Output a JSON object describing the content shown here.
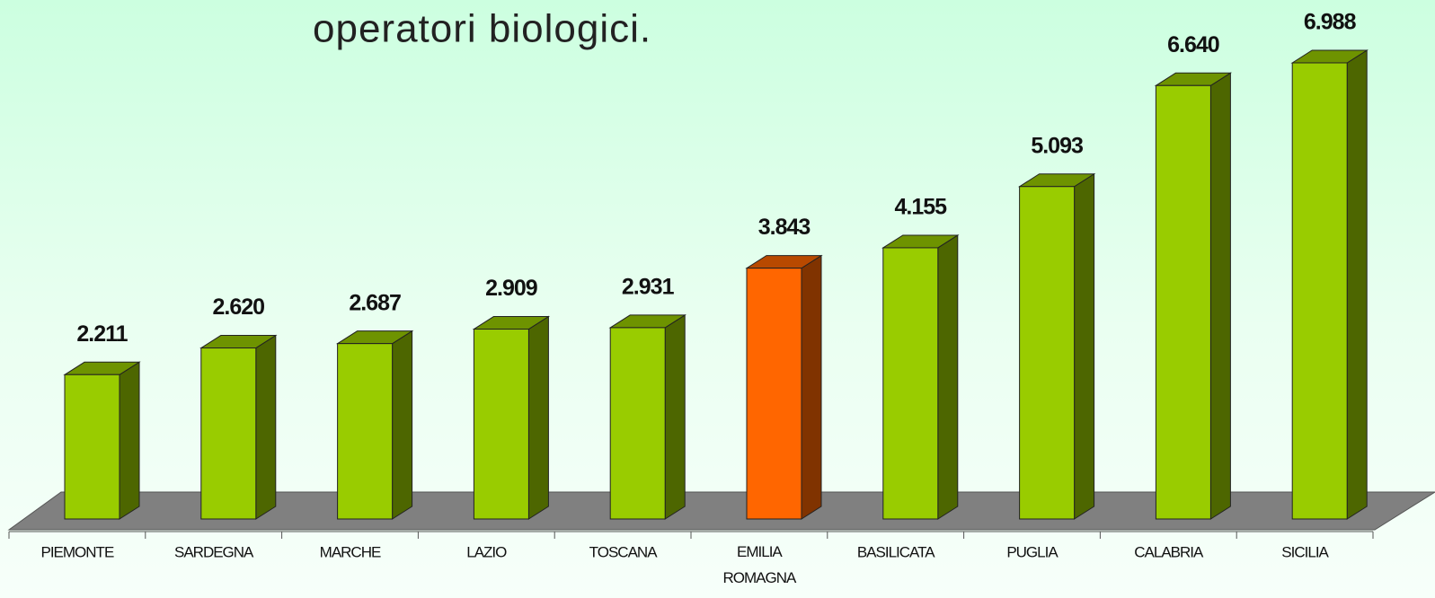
{
  "chart_data": {
    "type": "bar3d",
    "title": "operatori biologici.",
    "categories": [
      "PIEMONTE",
      "SARDEGNA",
      "MARCHE",
      "LAZIO",
      "TOSCANA",
      "EMILIA ROMAGNA",
      "BASILICATA",
      "PUGLIA",
      "CALABRIA",
      "SICILIA"
    ],
    "values": [
      2211,
      2620,
      2687,
      2909,
      2931,
      3843,
      4155,
      5093,
      6640,
      6988
    ],
    "value_labels": [
      "2.211",
      "2.620",
      "2.687",
      "2.909",
      "2.931",
      "3.843",
      "4.155",
      "5.093",
      "6.640",
      "6.988"
    ],
    "colors": [
      "#99cc00",
      "#99cc00",
      "#99cc00",
      "#99cc00",
      "#99cc00",
      "#ff6600",
      "#99cc00",
      "#99cc00",
      "#99cc00",
      "#99cc00"
    ]
  }
}
